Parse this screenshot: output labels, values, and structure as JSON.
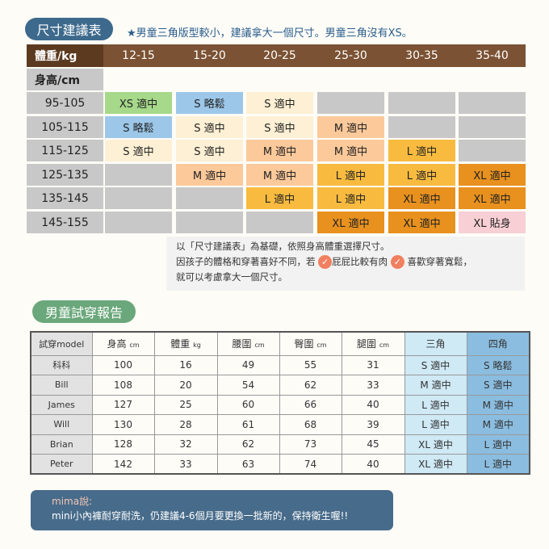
{
  "title": "尺寸建議表",
  "note": "★男童三角版型較小，建議拿大一個尺寸。男童三角沒有XS。",
  "size_chart": {
    "weight_header": "體重/kg",
    "height_header": "身高/cm",
    "weights": [
      "12-15",
      "15-20",
      "20-25",
      "25-30",
      "30-35",
      "35-40"
    ],
    "colors": {
      "header": "#7b5233",
      "header_dark": "#5c3a1f",
      "empty": "#c8c8c8",
      "xs": "#a6d98a",
      "loose": "#9cc7e8",
      "s": "#fef0d4",
      "m": "#fcc99a",
      "l": "#f8bb3f",
      "xl": "#e8911e",
      "tight": "#f8cfd4"
    },
    "rows": [
      {
        "height": "95-105",
        "cells": [
          {
            "t": "XS 適中",
            "c": "xs"
          },
          {
            "t": "S 略鬆",
            "c": "loose"
          },
          {
            "t": "S 適中",
            "c": "s"
          },
          {
            "t": "",
            "c": "empty"
          },
          {
            "t": "",
            "c": "empty"
          },
          {
            "t": "",
            "c": "empty"
          }
        ]
      },
      {
        "height": "105-115",
        "cells": [
          {
            "t": "S 略鬆",
            "c": "loose"
          },
          {
            "t": "S 適中",
            "c": "s"
          },
          {
            "t": "S 適中",
            "c": "s"
          },
          {
            "t": "M 適中",
            "c": "m"
          },
          {
            "t": "",
            "c": "empty"
          },
          {
            "t": "",
            "c": "empty"
          }
        ]
      },
      {
        "height": "115-125",
        "cells": [
          {
            "t": "S 適中",
            "c": "s"
          },
          {
            "t": "S 適中",
            "c": "s"
          },
          {
            "t": "M 適中",
            "c": "m"
          },
          {
            "t": "M 適中",
            "c": "m"
          },
          {
            "t": "L 適中",
            "c": "l"
          },
          {
            "t": "",
            "c": "empty"
          }
        ]
      },
      {
        "height": "125-135",
        "cells": [
          {
            "t": "",
            "c": "empty"
          },
          {
            "t": "M 適中",
            "c": "m"
          },
          {
            "t": "M 適中",
            "c": "m"
          },
          {
            "t": "L 適中",
            "c": "l"
          },
          {
            "t": "L 適中",
            "c": "l"
          },
          {
            "t": "XL 適中",
            "c": "xl"
          }
        ]
      },
      {
        "height": "135-145",
        "cells": [
          {
            "t": "",
            "c": "empty"
          },
          {
            "t": "",
            "c": "empty"
          },
          {
            "t": "L 適中",
            "c": "l"
          },
          {
            "t": "L 適中",
            "c": "l"
          },
          {
            "t": "XL 適中",
            "c": "xl"
          },
          {
            "t": "XL 適中",
            "c": "xl"
          }
        ]
      },
      {
        "height": "145-155",
        "cells": [
          {
            "t": "",
            "c": "empty"
          },
          {
            "t": "",
            "c": "empty"
          },
          {
            "t": "",
            "c": "empty"
          },
          {
            "t": "XL 適中",
            "c": "xl"
          },
          {
            "t": "XL 適中",
            "c": "xl"
          },
          {
            "t": "XL 貼身",
            "c": "tight"
          }
        ]
      }
    ]
  },
  "advice": {
    "line1": "以「尺寸建議表」為基礎，依照身高體重選擇尺寸。",
    "line2a": "因孩子的體格和穿著喜好不同，若",
    "line2b": "屁屁比較有肉",
    "line2c": "喜歡穿著寬鬆，",
    "line3": "就可以考慮拿大一個尺寸。",
    "check_icon": "check-circle"
  },
  "report": {
    "title": "男童試穿報告",
    "headers": [
      {
        "t": "試穿model",
        "u": ""
      },
      {
        "t": "身高",
        "u": "cm"
      },
      {
        "t": "體重",
        "u": "kg"
      },
      {
        "t": "腰圍",
        "u": "cm"
      },
      {
        "t": "臀圍",
        "u": "cm"
      },
      {
        "t": "腿圍",
        "u": "cm"
      },
      {
        "t": "三角",
        "u": ""
      },
      {
        "t": "四角",
        "u": ""
      }
    ],
    "rows": [
      [
        "科科",
        "100",
        "16",
        "49",
        "55",
        "31",
        "S 適中",
        "S 略鬆"
      ],
      [
        "Bill",
        "108",
        "20",
        "54",
        "62",
        "33",
        "M 適中",
        "S 適中"
      ],
      [
        "James",
        "127",
        "25",
        "60",
        "66",
        "40",
        "L 適中",
        "M 適中"
      ],
      [
        "Will",
        "130",
        "28",
        "61",
        "68",
        "39",
        "L 適中",
        "M 適中"
      ],
      [
        "Brian",
        "128",
        "32",
        "62",
        "73",
        "45",
        "XL 適中",
        "L 適中"
      ],
      [
        "Peter",
        "142",
        "33",
        "63",
        "74",
        "40",
        "XL 適中",
        "L 適中"
      ]
    ]
  },
  "mima": {
    "who": "mima說:",
    "text": "mini小內褲耐穿耐洗，仍建議4-6個月要更換一批新的，保持衛生喔!!"
  }
}
